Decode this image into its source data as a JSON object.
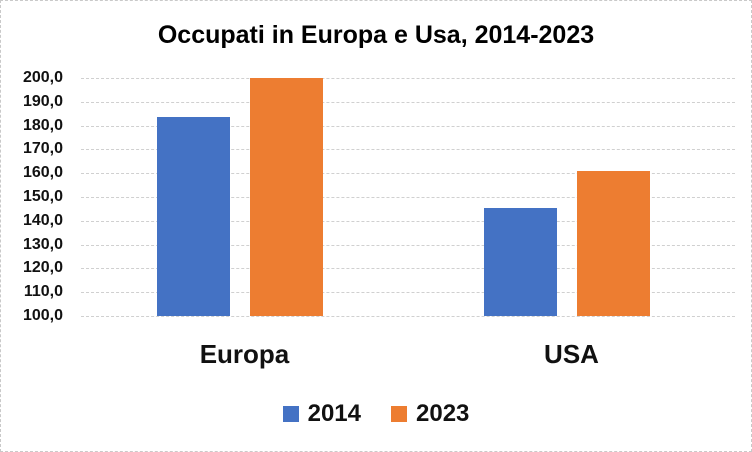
{
  "chart_data": {
    "type": "bar",
    "title": "Occupati in Europa e Usa, 2014-2023",
    "categories": [
      "Europa",
      "USA"
    ],
    "series": [
      {
        "name": "2014",
        "color": "#4472C4",
        "values": [
          183.5,
          145.5
        ]
      },
      {
        "name": "2023",
        "color": "#ED7D31",
        "values": [
          200.0,
          161.0
        ]
      }
    ],
    "ylim": [
      100,
      200
    ],
    "ytick_step": 10,
    "ytick_labels": [
      "100,0",
      "110,0",
      "120,0",
      "130,0",
      "140,0",
      "150,0",
      "160,0",
      "170,0",
      "180,0",
      "190,0",
      "200,0"
    ],
    "grid": true,
    "gridline_color": "#d0d0d0",
    "legend_position": "bottom",
    "colors": {
      "series_2014": "#4472C4",
      "series_2023": "#ED7D31",
      "background": "#ffffff",
      "text": "#111111"
    }
  }
}
